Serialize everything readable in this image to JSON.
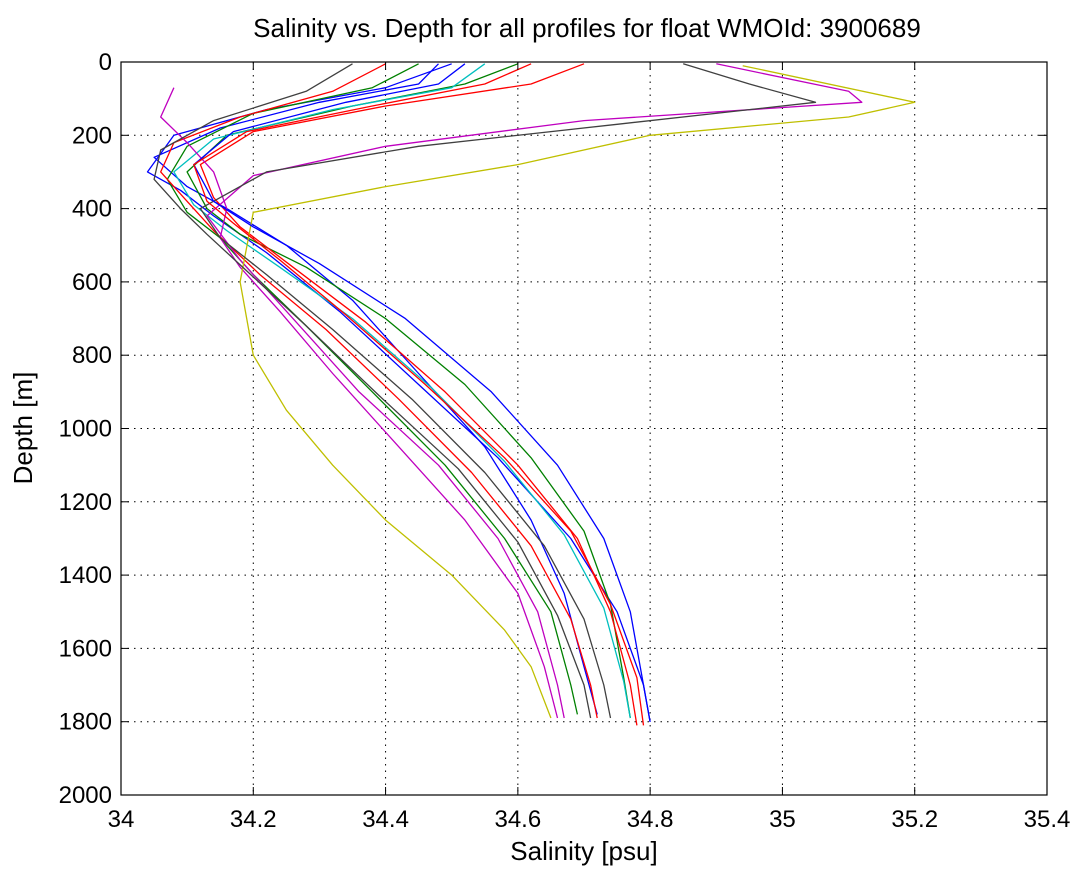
{
  "chart_data": {
    "type": "line",
    "title": "Salinity vs. Depth for all profiles for float WMOId: 3900689",
    "xlabel": "Salinity [psu]",
    "ylabel": "Depth [m]",
    "xlim": [
      34,
      35.4
    ],
    "ylim": [
      0,
      2000
    ],
    "y_reversed": true,
    "grid": true,
    "xticks": [
      34,
      34.2,
      34.4,
      34.6,
      34.8,
      35,
      35.2,
      35.4
    ],
    "xtick_labels": [
      "34",
      "34.2",
      "34.4",
      "34.6",
      "34.8",
      "35",
      "35.2",
      "35.4"
    ],
    "yticks": [
      0,
      200,
      400,
      600,
      800,
      1000,
      1200,
      1400,
      1600,
      1800,
      2000
    ],
    "ytick_labels": [
      "0",
      "200",
      "400",
      "600",
      "800",
      "1000",
      "1200",
      "1400",
      "1600",
      "1800",
      "2000"
    ],
    "colors": [
      "#0000ff",
      "#008000",
      "#ff0000",
      "#00bfbf",
      "#bf00bf",
      "#bfbf00",
      "#404040"
    ],
    "series": [
      {
        "color": "#0000ff",
        "x": [
          34.48,
          34.45,
          34.3,
          34.15,
          34.05,
          34.1,
          34.16,
          34.25,
          34.35,
          34.45,
          34.55,
          34.62,
          34.67,
          34.7,
          34.72
        ],
        "y": [
          5,
          60,
          110,
          180,
          260,
          340,
          400,
          500,
          650,
          850,
          1050,
          1250,
          1450,
          1650,
          1780
        ]
      },
      {
        "color": "#0000ff",
        "x": [
          34.5,
          34.4,
          34.22,
          34.08,
          34.04,
          34.09,
          34.14,
          34.22,
          34.33,
          34.45,
          34.57,
          34.68,
          34.75,
          34.79,
          34.8
        ],
        "y": [
          5,
          70,
          130,
          200,
          300,
          350,
          420,
          520,
          680,
          880,
          1080,
          1300,
          1500,
          1700,
          1800
        ]
      },
      {
        "color": "#008000",
        "x": [
          34.6,
          34.52,
          34.35,
          34.16,
          34.1,
          34.13,
          34.18,
          34.28,
          34.4,
          34.52,
          34.62,
          34.7,
          34.74,
          34.76,
          34.77
        ],
        "y": [
          5,
          60,
          120,
          200,
          300,
          400,
          470,
          560,
          700,
          880,
          1080,
          1280,
          1480,
          1680,
          1790
        ]
      },
      {
        "color": "#008000",
        "x": [
          34.45,
          34.38,
          34.2,
          34.1,
          34.07,
          34.1,
          34.15,
          34.2,
          34.28,
          34.38,
          34.49,
          34.58,
          34.65,
          34.68,
          34.69
        ],
        "y": [
          5,
          70,
          140,
          230,
          320,
          410,
          480,
          580,
          720,
          900,
          1100,
          1300,
          1500,
          1700,
          1780
        ]
      },
      {
        "color": "#ff0000",
        "x": [
          34.7,
          34.62,
          34.4,
          34.2,
          34.12,
          34.14,
          34.18,
          34.26,
          34.37,
          34.49,
          34.6,
          34.69,
          34.74,
          34.77,
          34.78
        ],
        "y": [
          5,
          60,
          120,
          190,
          280,
          370,
          450,
          560,
          710,
          900,
          1100,
          1300,
          1500,
          1700,
          1810
        ]
      },
      {
        "color": "#ff0000",
        "x": [
          34.4,
          34.32,
          34.18,
          34.08,
          34.06,
          34.1,
          34.14,
          34.21,
          34.31,
          34.42,
          34.53,
          34.62,
          34.68,
          34.71,
          34.72
        ],
        "y": [
          5,
          80,
          150,
          220,
          300,
          380,
          460,
          580,
          730,
          920,
          1120,
          1320,
          1520,
          1700,
          1790
        ]
      },
      {
        "color": "#00bfbf",
        "x": [
          34.55,
          34.5,
          34.32,
          34.14,
          34.08,
          34.11,
          34.16,
          34.24,
          34.35,
          34.47,
          34.58,
          34.67,
          34.73,
          34.76,
          34.77
        ],
        "y": [
          5,
          70,
          130,
          210,
          300,
          390,
          460,
          560,
          700,
          890,
          1090,
          1290,
          1490,
          1690,
          1790
        ]
      },
      {
        "color": "#bf00bf",
        "x": [
          34.9,
          35.1,
          35.12,
          34.7,
          34.4,
          34.2,
          34.13,
          34.18,
          34.26,
          34.36,
          34.48,
          34.57,
          34.63,
          34.66,
          34.67
        ],
        "y": [
          5,
          80,
          110,
          160,
          230,
          310,
          420,
          540,
          700,
          900,
          1100,
          1300,
          1500,
          1700,
          1790
        ]
      },
      {
        "color": "#bf00bf",
        "x": [
          34.08,
          34.06,
          34.1,
          34.14,
          34.16,
          34.15,
          34.18,
          34.24,
          34.32,
          34.42,
          34.52,
          34.6,
          34.64,
          34.66
        ],
        "y": [
          70,
          150,
          220,
          300,
          400,
          480,
          560,
          680,
          850,
          1050,
          1250,
          1450,
          1650,
          1790
        ]
      },
      {
        "color": "#bfbf00",
        "x": [
          34.94,
          35.2,
          35.1,
          34.8,
          34.6,
          34.4,
          34.2,
          34.18,
          34.2,
          34.25,
          34.32,
          34.4,
          34.5,
          34.58,
          34.62,
          34.65
        ],
        "y": [
          10,
          110,
          150,
          200,
          280,
          340,
          410,
          600,
          800,
          950,
          1100,
          1250,
          1400,
          1550,
          1650,
          1790
        ]
      },
      {
        "color": "#404040",
        "x": [
          34.85,
          34.95,
          35.05,
          34.75,
          34.45,
          34.22,
          34.12,
          34.15,
          34.22,
          34.32,
          34.44,
          34.55,
          34.64,
          34.7,
          34.73,
          34.74
        ],
        "y": [
          5,
          60,
          110,
          170,
          230,
          300,
          400,
          480,
          580,
          730,
          920,
          1120,
          1320,
          1520,
          1700,
          1790
        ]
      },
      {
        "color": "#404040",
        "x": [
          34.35,
          34.28,
          34.14,
          34.06,
          34.05,
          34.09,
          34.13,
          34.19,
          34.28,
          34.39,
          34.51,
          34.6,
          34.66,
          34.7,
          34.71
        ],
        "y": [
          5,
          80,
          160,
          240,
          320,
          400,
          470,
          570,
          720,
          910,
          1110,
          1310,
          1510,
          1700,
          1790
        ]
      },
      {
        "color": "#0000ff",
        "x": [
          34.52,
          34.48,
          34.34,
          34.17,
          34.11,
          34.14,
          34.2,
          34.3,
          34.43,
          34.56,
          34.66,
          34.73,
          34.77,
          34.79,
          34.8
        ],
        "y": [
          5,
          60,
          110,
          190,
          280,
          380,
          450,
          550,
          700,
          900,
          1100,
          1300,
          1500,
          1700,
          1800
        ]
      },
      {
        "color": "#ff0000",
        "x": [
          34.62,
          34.55,
          34.38,
          34.19,
          34.11,
          34.13,
          34.17,
          34.24,
          34.34,
          34.46,
          34.58,
          34.68,
          34.74,
          34.78,
          34.79
        ],
        "y": [
          5,
          60,
          120,
          190,
          280,
          380,
          440,
          540,
          690,
          880,
          1080,
          1280,
          1480,
          1680,
          1810
        ]
      }
    ]
  }
}
